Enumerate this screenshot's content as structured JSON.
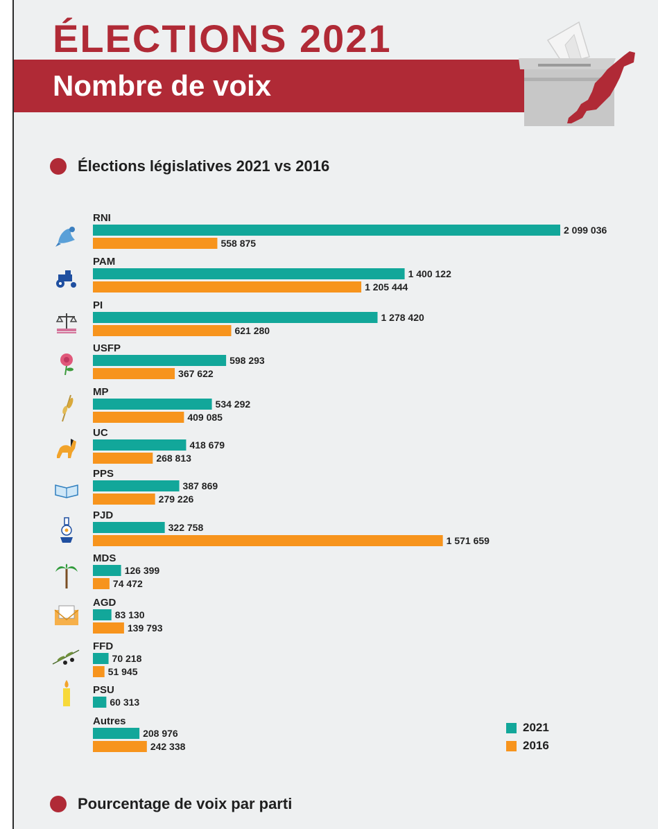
{
  "header": {
    "title": "ÉLECTIONS 2021",
    "subtitle": "Nombre de voix"
  },
  "sections": {
    "legislatives": "Élections législatives 2021 vs 2016",
    "pourcentage": "Pourcentage de voix par parti"
  },
  "colors": {
    "accent": "#b02a36",
    "series_2021": "#12a79a",
    "series_2016": "#f7941d"
  },
  "legend": [
    {
      "label": "2021",
      "color": "#12a79a"
    },
    {
      "label": "2016",
      "color": "#f7941d"
    }
  ],
  "chart_data": {
    "type": "bar",
    "orientation": "horizontal",
    "title": "Élections législatives 2021 vs 2016",
    "categories": [
      "RNI",
      "PAM",
      "PI",
      "USFP",
      "MP",
      "UC",
      "PPS",
      "PJD",
      "MDS",
      "AGD",
      "FFD",
      "PSU",
      "Autres"
    ],
    "icons": [
      "dove-icon",
      "tractor-icon",
      "scales-icon",
      "rose-icon",
      "wheat-icon",
      "horse-icon",
      "book-icon",
      "lamp-icon",
      "palm-tree-icon",
      "envelope-icon",
      "olive-branch-icon",
      "candle-icon",
      ""
    ],
    "series": [
      {
        "name": "2021",
        "values": [
          2099036,
          1400122,
          1278420,
          598293,
          534292,
          418679,
          387869,
          322758,
          126399,
          83130,
          70218,
          60313,
          208976
        ],
        "labels": [
          "2 099 036",
          "1 400 122",
          "1 278 420",
          "598 293",
          "534 292",
          "418 679",
          "387 869",
          "322 758",
          "126 399",
          "83 130",
          "70 218",
          "60 313",
          "208 976"
        ]
      },
      {
        "name": "2016",
        "values": [
          558875,
          1205444,
          621280,
          367622,
          409085,
          268813,
          279226,
          1571659,
          74472,
          139793,
          51945,
          null,
          242338
        ],
        "labels": [
          "558 875",
          "1 205 444",
          "621 280",
          "367 622",
          "409 085",
          "268 813",
          "279 226",
          "1 571 659",
          "74 472",
          "139 793",
          "51 945",
          null,
          "242 338"
        ]
      }
    ],
    "xlim": [
      0,
      2099036
    ],
    "grid": false,
    "legend_position": "bottom-right"
  }
}
